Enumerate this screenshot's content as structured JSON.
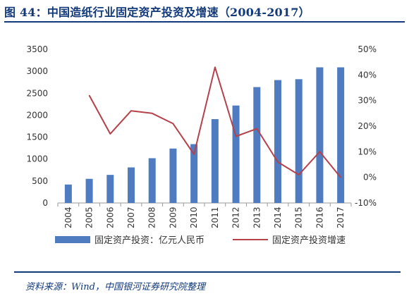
{
  "figure": {
    "title": "图 44：中国造纸行业固定资产投资及增速（2004-2017）",
    "source": "资料来源：Wind，中国银河证券研究院整理"
  },
  "chart_data": {
    "type": "bar",
    "title": "",
    "categories": [
      "2004",
      "2005",
      "2006",
      "2007",
      "2008",
      "2009",
      "2010",
      "2011",
      "2012",
      "2013",
      "2014",
      "2015",
      "2016",
      "2017"
    ],
    "series": [
      {
        "name": "固定资产投资：亿元人民币",
        "type": "bar",
        "axis": "left",
        "color": "#4f7cc0",
        "values": [
          420,
          550,
          640,
          810,
          1020,
          1240,
          1340,
          1910,
          2220,
          2640,
          2800,
          2820,
          3090,
          3090
        ]
      },
      {
        "name": "固定资产投资增速",
        "type": "line",
        "axis": "right",
        "color": "#b5414a",
        "values": [
          null,
          0.32,
          0.17,
          0.26,
          0.25,
          0.21,
          0.09,
          0.43,
          0.16,
          0.19,
          0.06,
          0.01,
          0.1,
          0.0
        ]
      }
    ],
    "y_left": {
      "min": 0,
      "max": 3500,
      "ticks": [
        0,
        500,
        1000,
        1500,
        2000,
        2500,
        3000,
        3500
      ]
    },
    "y_right": {
      "min": -0.1,
      "max": 0.5,
      "ticks": [
        -0.1,
        0.0,
        0.1,
        0.2,
        0.3,
        0.4,
        0.5
      ],
      "tick_labels": [
        "-10%",
        "0%",
        "10%",
        "20%",
        "30%",
        "40%",
        "50%"
      ]
    },
    "grid": false,
    "legend_position": "bottom"
  }
}
